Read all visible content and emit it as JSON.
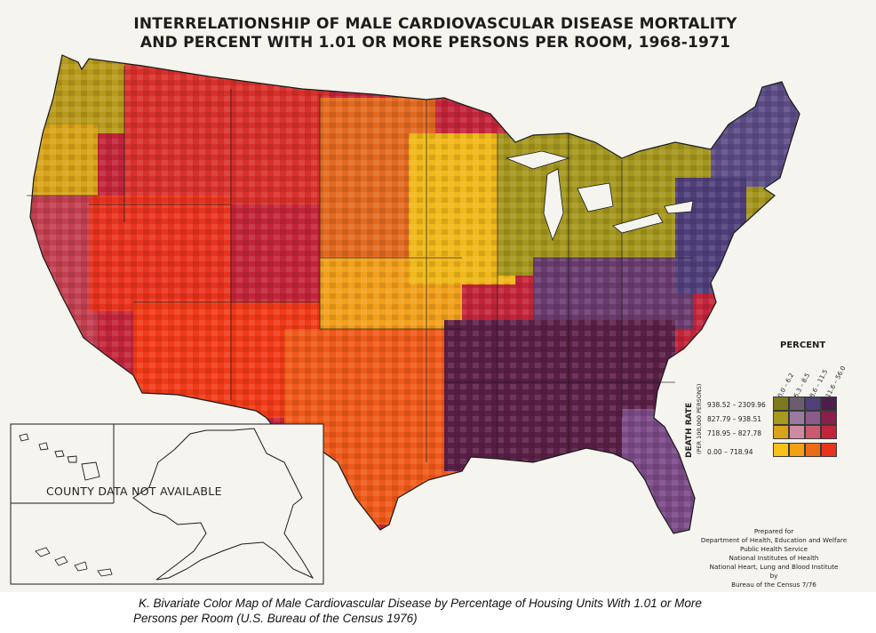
{
  "title": {
    "line1": "INTERRELATIONSHIP OF MALE CARDIOVASCULAR DISEASE MORTALITY",
    "line2": "AND PERCENT WITH 1.01 OR MORE PERSONS PER ROOM, 1968-1971"
  },
  "inset_note": "COUNTY DATA NOT AVAILABLE",
  "legend": {
    "percent_title": "PERCENT",
    "percent_classes": [
      "0.0 – 6.2",
      "6.3 – 8.5",
      "8.6 – 11.5",
      "11.6 – 56.0"
    ],
    "death_rate_title": "DEATH RATE",
    "death_rate_subtitle": "(PER 100,000 PERSONS)",
    "death_rate_classes": [
      "938.52 – 2309.96",
      "827.79 – 938.51",
      "718.95 – 827.78",
      "0.00 – 718.94"
    ],
    "colors": [
      [
        "#7d7a1e",
        "#6b5c6e",
        "#4f3f7a",
        "#4a1f4a"
      ],
      [
        "#a89a1a",
        "#9a7aa0",
        "#8a5a8a",
        "#8a1f4a"
      ],
      [
        "#d9a41a",
        "#d08aa0",
        "#c95a70",
        "#c2253a"
      ],
      [
        "#f6c21a",
        "#f3a012",
        "#ee6a14",
        "#e8331e"
      ]
    ]
  },
  "credit": [
    "Prepared for",
    "Department of Health, Education and Welfare",
    "Public Health Service",
    "National Institutes of Health",
    "National Heart, Lung and Blood Institute",
    "by",
    "Bureau of the Census 7/76"
  ],
  "caption": {
    "line1": "K.  Bivariate Color Map of Male Cardiovascular Disease by Percentage of Housing Units With 1.01 or More",
    "line2": "Persons per Room (U.S. Bureau of the Census 1976)"
  }
}
